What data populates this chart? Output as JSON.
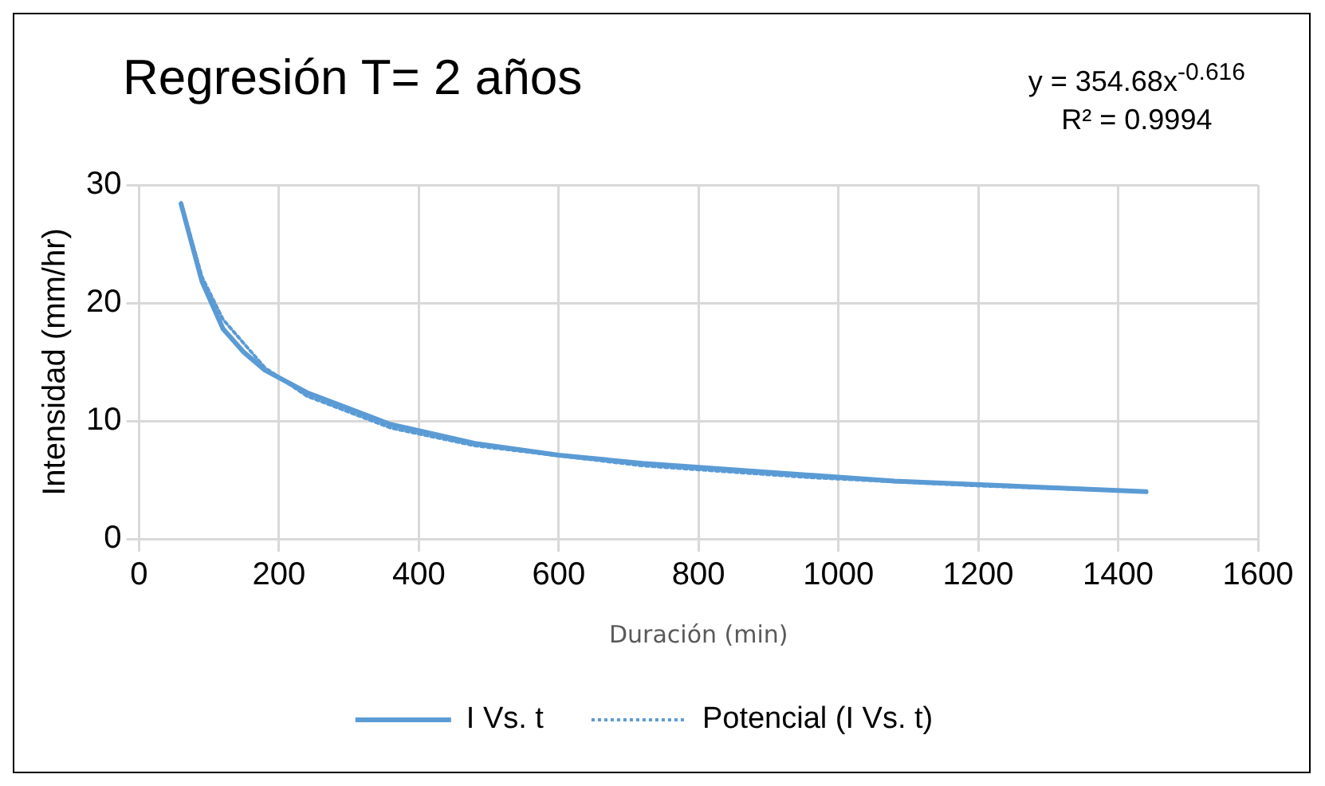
{
  "chart_data": {
    "type": "line",
    "title": "Regresión T= 2 años",
    "xlabel": "Duración (min)",
    "ylabel": "Intensidad (mm/hr)",
    "annotations": [
      "y = 354.68x$^{-0.616}$",
      "R² = 0.9994"
    ],
    "series": [
      {
        "name": "I Vs. t",
        "color": "#5b9bd5",
        "line_style": "solid",
        "x": [
          60,
          90,
          120,
          150,
          180,
          240,
          360,
          480,
          600,
          720,
          1080,
          1440
        ],
        "values": [
          28.4,
          21.8,
          17.8,
          15.8,
          14.3,
          12.4,
          9.7,
          8.1,
          7.1,
          6.4,
          4.9,
          4.0
        ]
      },
      {
        "name": "Potencial (I Vs. t)",
        "color": "#5b9bd5",
        "line_style": "dotted",
        "x": [
          60,
          90,
          120,
          180,
          240,
          360,
          480,
          720,
          960,
          1200,
          1440
        ],
        "values": [
          28.5,
          22.2,
          18.6,
          14.5,
          12.1,
          9.4,
          7.9,
          6.2,
          5.2,
          4.5,
          4.0
        ]
      }
    ],
    "xlim": [
      0,
      1600
    ],
    "xticks": [
      0,
      200,
      400,
      600,
      800,
      1000,
      1200,
      1400,
      1600
    ],
    "ylim": [
      0,
      30
    ],
    "yticks": [
      0,
      10,
      20,
      30
    ],
    "grid": true,
    "legend": "bottom",
    "marker": "none"
  }
}
